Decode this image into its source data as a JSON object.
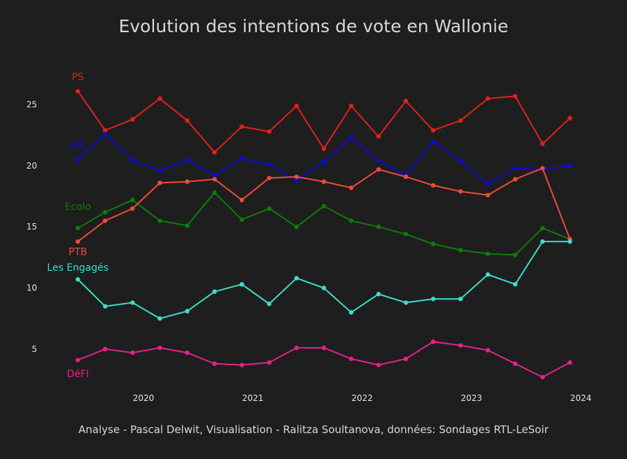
{
  "chart_data": {
    "type": "line",
    "title": "Evolution des intentions de vote en Wallonie",
    "caption": "Analyse - Pascal Delwit, Visualisation - Ralitza Soultanova, données: Sondages RTL-LeSoir",
    "xlabel": "",
    "ylabel": "",
    "x": [
      2019.4,
      2019.65,
      2019.9,
      2020.15,
      2020.4,
      2020.65,
      2020.9,
      2021.15,
      2021.4,
      2021.65,
      2021.9,
      2022.15,
      2022.4,
      2022.65,
      2022.9,
      2023.15,
      2023.4,
      2023.65,
      2023.9
    ],
    "x_ticks": [
      2020,
      2021,
      2022,
      2023,
      2024
    ],
    "x_tick_labels": [
      "2020",
      "2021",
      "2022",
      "2023",
      "2024"
    ],
    "xlim": [
      2019.2,
      2024.0
    ],
    "y_ticks": [
      5,
      10,
      15,
      20,
      25
    ],
    "y_tick_labels": [
      "5",
      "10",
      "15",
      "20",
      "25"
    ],
    "ylim": [
      1.5,
      28.7
    ],
    "grid": false,
    "legend": "none",
    "series": [
      {
        "name": "PS",
        "color": "#e3201b",
        "label_pos": [
          2019.4,
          27.0
        ],
        "values": [
          26.1,
          22.9,
          23.8,
          25.5,
          23.7,
          21.1,
          23.2,
          22.8,
          24.9,
          21.4,
          24.9,
          22.4,
          25.3,
          22.9,
          23.7,
          25.5,
          25.7,
          21.8,
          23.9
        ]
      },
      {
        "name": "MR",
        "color": "#0b0bd8",
        "label_pos": [
          2019.4,
          21.4
        ],
        "values": [
          20.5,
          22.6,
          20.5,
          19.6,
          20.5,
          19.2,
          20.6,
          20.1,
          18.8,
          20.3,
          22.3,
          20.4,
          19.2,
          22.0,
          20.4,
          18.5,
          19.8,
          19.7,
          20.0
        ]
      },
      {
        "name": "Ecolo",
        "color": "#0c7d0c",
        "label_pos": [
          2019.4,
          16.4
        ],
        "values": [
          14.9,
          16.2,
          17.2,
          15.5,
          15.1,
          17.8,
          15.6,
          16.5,
          15.0,
          16.7,
          15.5,
          15.0,
          14.4,
          13.6,
          13.1,
          12.8,
          12.7,
          14.9,
          14.0
        ]
      },
      {
        "name": "PTB",
        "color": "#f04a3a",
        "label_pos": [
          2019.4,
          12.7
        ],
        "values": [
          13.8,
          15.5,
          16.5,
          18.6,
          18.7,
          18.9,
          17.2,
          19.0,
          19.1,
          18.7,
          18.2,
          19.7,
          19.1,
          18.4,
          17.9,
          17.6,
          18.9,
          19.8,
          14.0
        ]
      },
      {
        "name": "Les Engagés",
        "color": "#38e0cb",
        "label_pos": [
          2019.4,
          11.4
        ],
        "values": [
          10.7,
          8.5,
          8.8,
          7.5,
          8.1,
          9.7,
          10.3,
          8.7,
          10.8,
          10.0,
          8.0,
          9.5,
          8.8,
          9.1,
          9.1,
          11.1,
          10.3,
          13.8,
          13.8
        ]
      },
      {
        "name": "DéFI",
        "color": "#e5218e",
        "label_pos": [
          2019.4,
          2.7
        ],
        "values": [
          4.1,
          5.0,
          4.7,
          5.1,
          4.7,
          3.8,
          3.7,
          3.9,
          5.1,
          5.1,
          4.2,
          3.7,
          4.2,
          5.6,
          5.3,
          4.9,
          3.8,
          2.7,
          3.9
        ]
      }
    ]
  }
}
